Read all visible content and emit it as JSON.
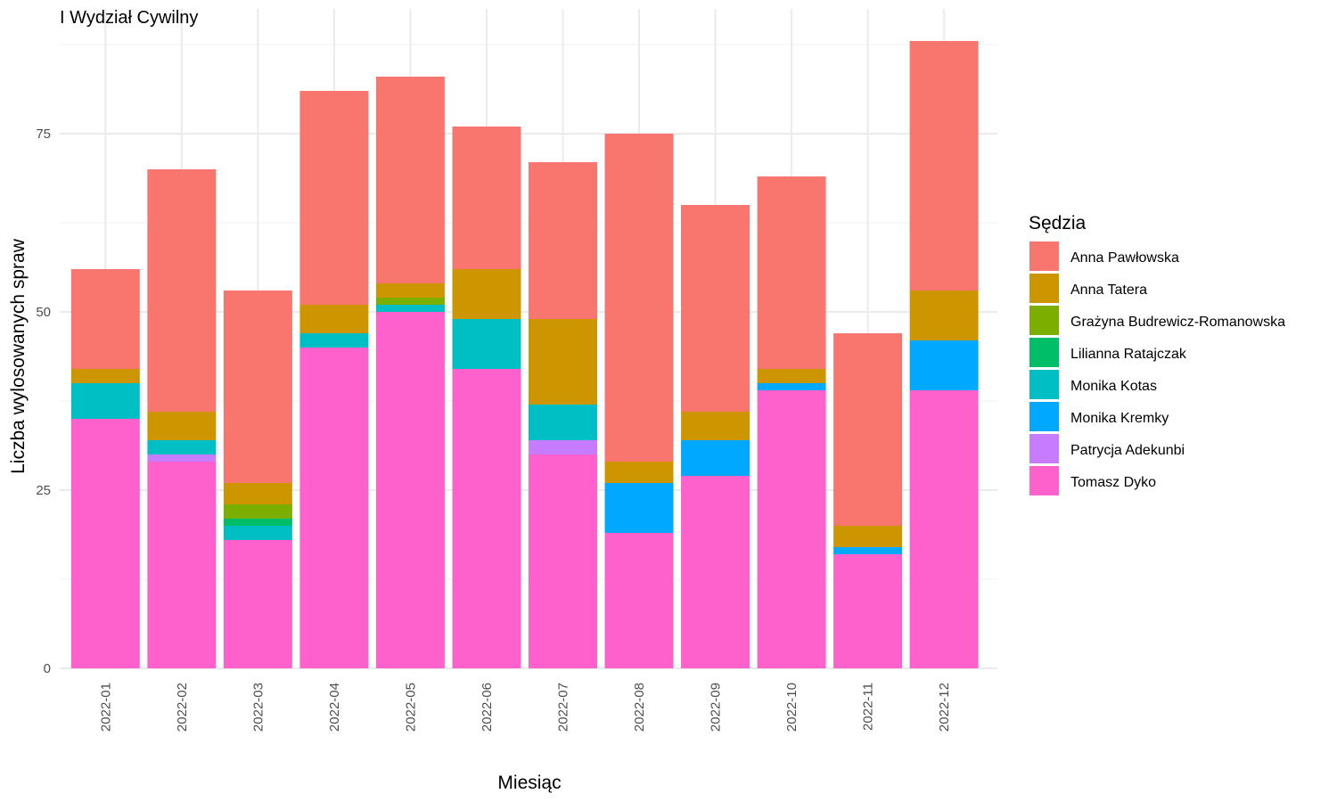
{
  "chart_data": {
    "type": "bar",
    "stacked": true,
    "title": "I Wydział Cywilny",
    "xlabel": "Miesiąc",
    "ylabel": "Liczba wylosowanych spraw",
    "ylim": [
      0,
      92
    ],
    "y_ticks": [
      0,
      25,
      50,
      75
    ],
    "grid": true,
    "legend_title": "Sędzia",
    "legend_position": "right",
    "categories": [
      "2022-01",
      "2022-02",
      "2022-03",
      "2022-04",
      "2022-05",
      "2022-06",
      "2022-07",
      "2022-08",
      "2022-09",
      "2022-10",
      "2022-11",
      "2022-12"
    ],
    "series": [
      {
        "name": "Tomasz Dyko",
        "color": "#FF61CC",
        "values": [
          35,
          29,
          18,
          45,
          50,
          42,
          30,
          19,
          27,
          39,
          16,
          39
        ]
      },
      {
        "name": "Patrycja Adekunbi",
        "color": "#C77CFF",
        "values": [
          0,
          1,
          0,
          0,
          0,
          0,
          2,
          0,
          0,
          0,
          0,
          0
        ]
      },
      {
        "name": "Monika Kremky",
        "color": "#00A9FF",
        "values": [
          0,
          0,
          0,
          0,
          0,
          0,
          0,
          7,
          5,
          1,
          1,
          7
        ]
      },
      {
        "name": "Monika Kotas",
        "color": "#00BFC4",
        "values": [
          5,
          2,
          2,
          2,
          1,
          7,
          5,
          0,
          0,
          0,
          0,
          0
        ]
      },
      {
        "name": "Lilianna Ratajczak",
        "color": "#00BE67",
        "values": [
          0,
          0,
          1,
          0,
          0,
          0,
          0,
          0,
          0,
          0,
          0,
          0
        ]
      },
      {
        "name": "Grażyna Budrewicz-Romanowska",
        "color": "#7CAE00",
        "values": [
          0,
          0,
          2,
          0,
          1,
          0,
          0,
          0,
          0,
          0,
          0,
          0
        ]
      },
      {
        "name": "Anna Tatera",
        "color": "#CD9600",
        "values": [
          2,
          4,
          3,
          4,
          2,
          7,
          12,
          3,
          4,
          2,
          3,
          7
        ]
      },
      {
        "name": "Anna Pawłowska",
        "color": "#F8766D",
        "values": [
          14,
          34,
          27,
          30,
          29,
          20,
          22,
          46,
          29,
          27,
          27,
          35
        ]
      }
    ],
    "legend_order": [
      "Anna Pawłowska",
      "Anna Tatera",
      "Grażyna Budrewicz-Romanowska",
      "Lilianna Ratajczak",
      "Monika Kotas",
      "Monika Kremky",
      "Patrycja Adekunbi",
      "Tomasz Dyko"
    ]
  }
}
